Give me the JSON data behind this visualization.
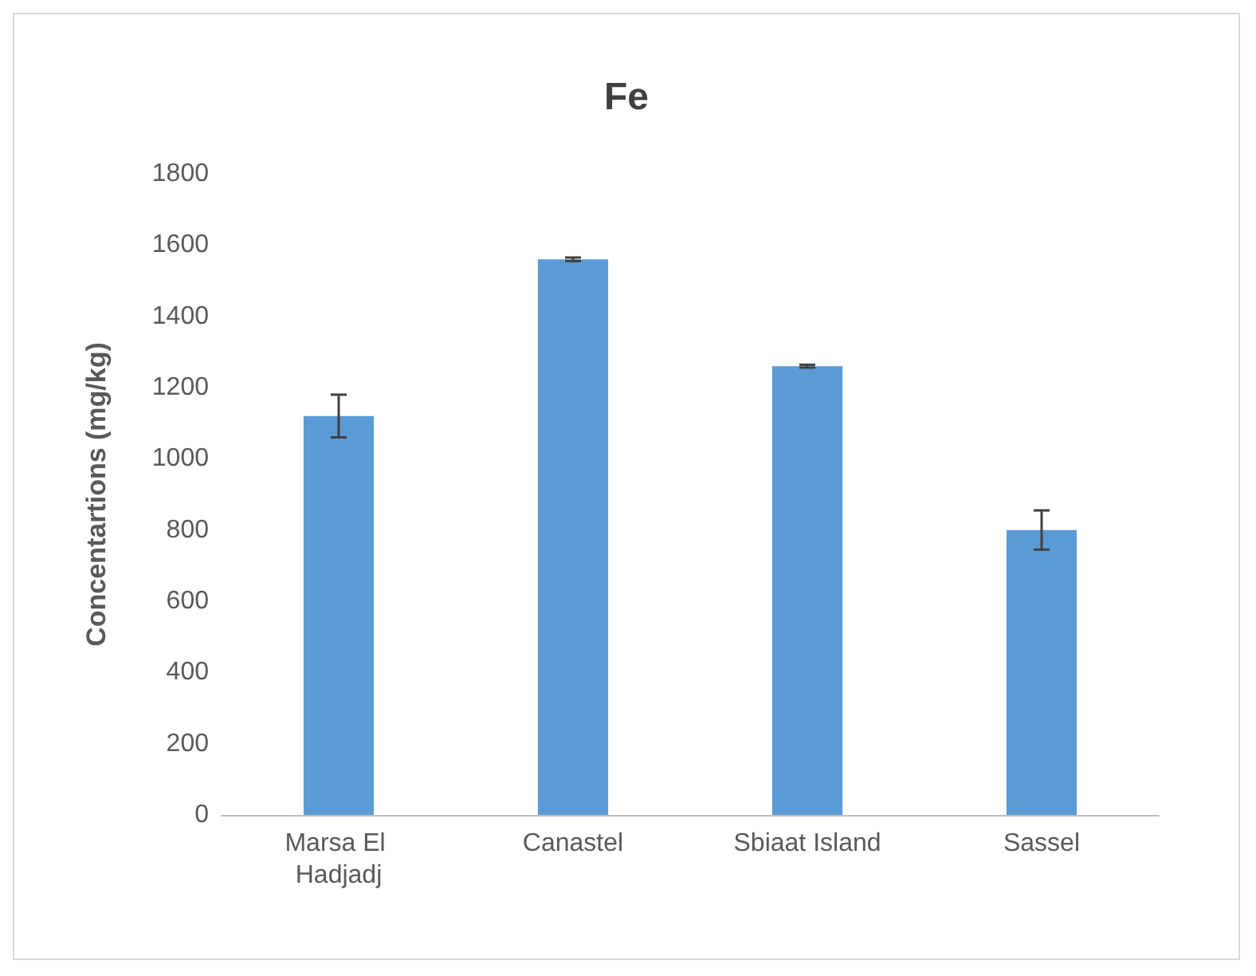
{
  "chart_data": {
    "type": "bar",
    "title": "Fe",
    "ylabel": "Concentartions (mg/kg)",
    "categories": [
      "Marsa El Hadjadj",
      "Canastel",
      "Sbiaat Island",
      "Sassel"
    ],
    "values": [
      1120,
      1560,
      1260,
      800
    ],
    "errors": [
      60,
      5,
      4,
      55
    ],
    "color": "#5b9bd5",
    "ylim": [
      0,
      1800
    ],
    "yticks": [
      0,
      200,
      400,
      600,
      800,
      1000,
      1200,
      1400,
      1600,
      1800
    ],
    "grid": false
  }
}
